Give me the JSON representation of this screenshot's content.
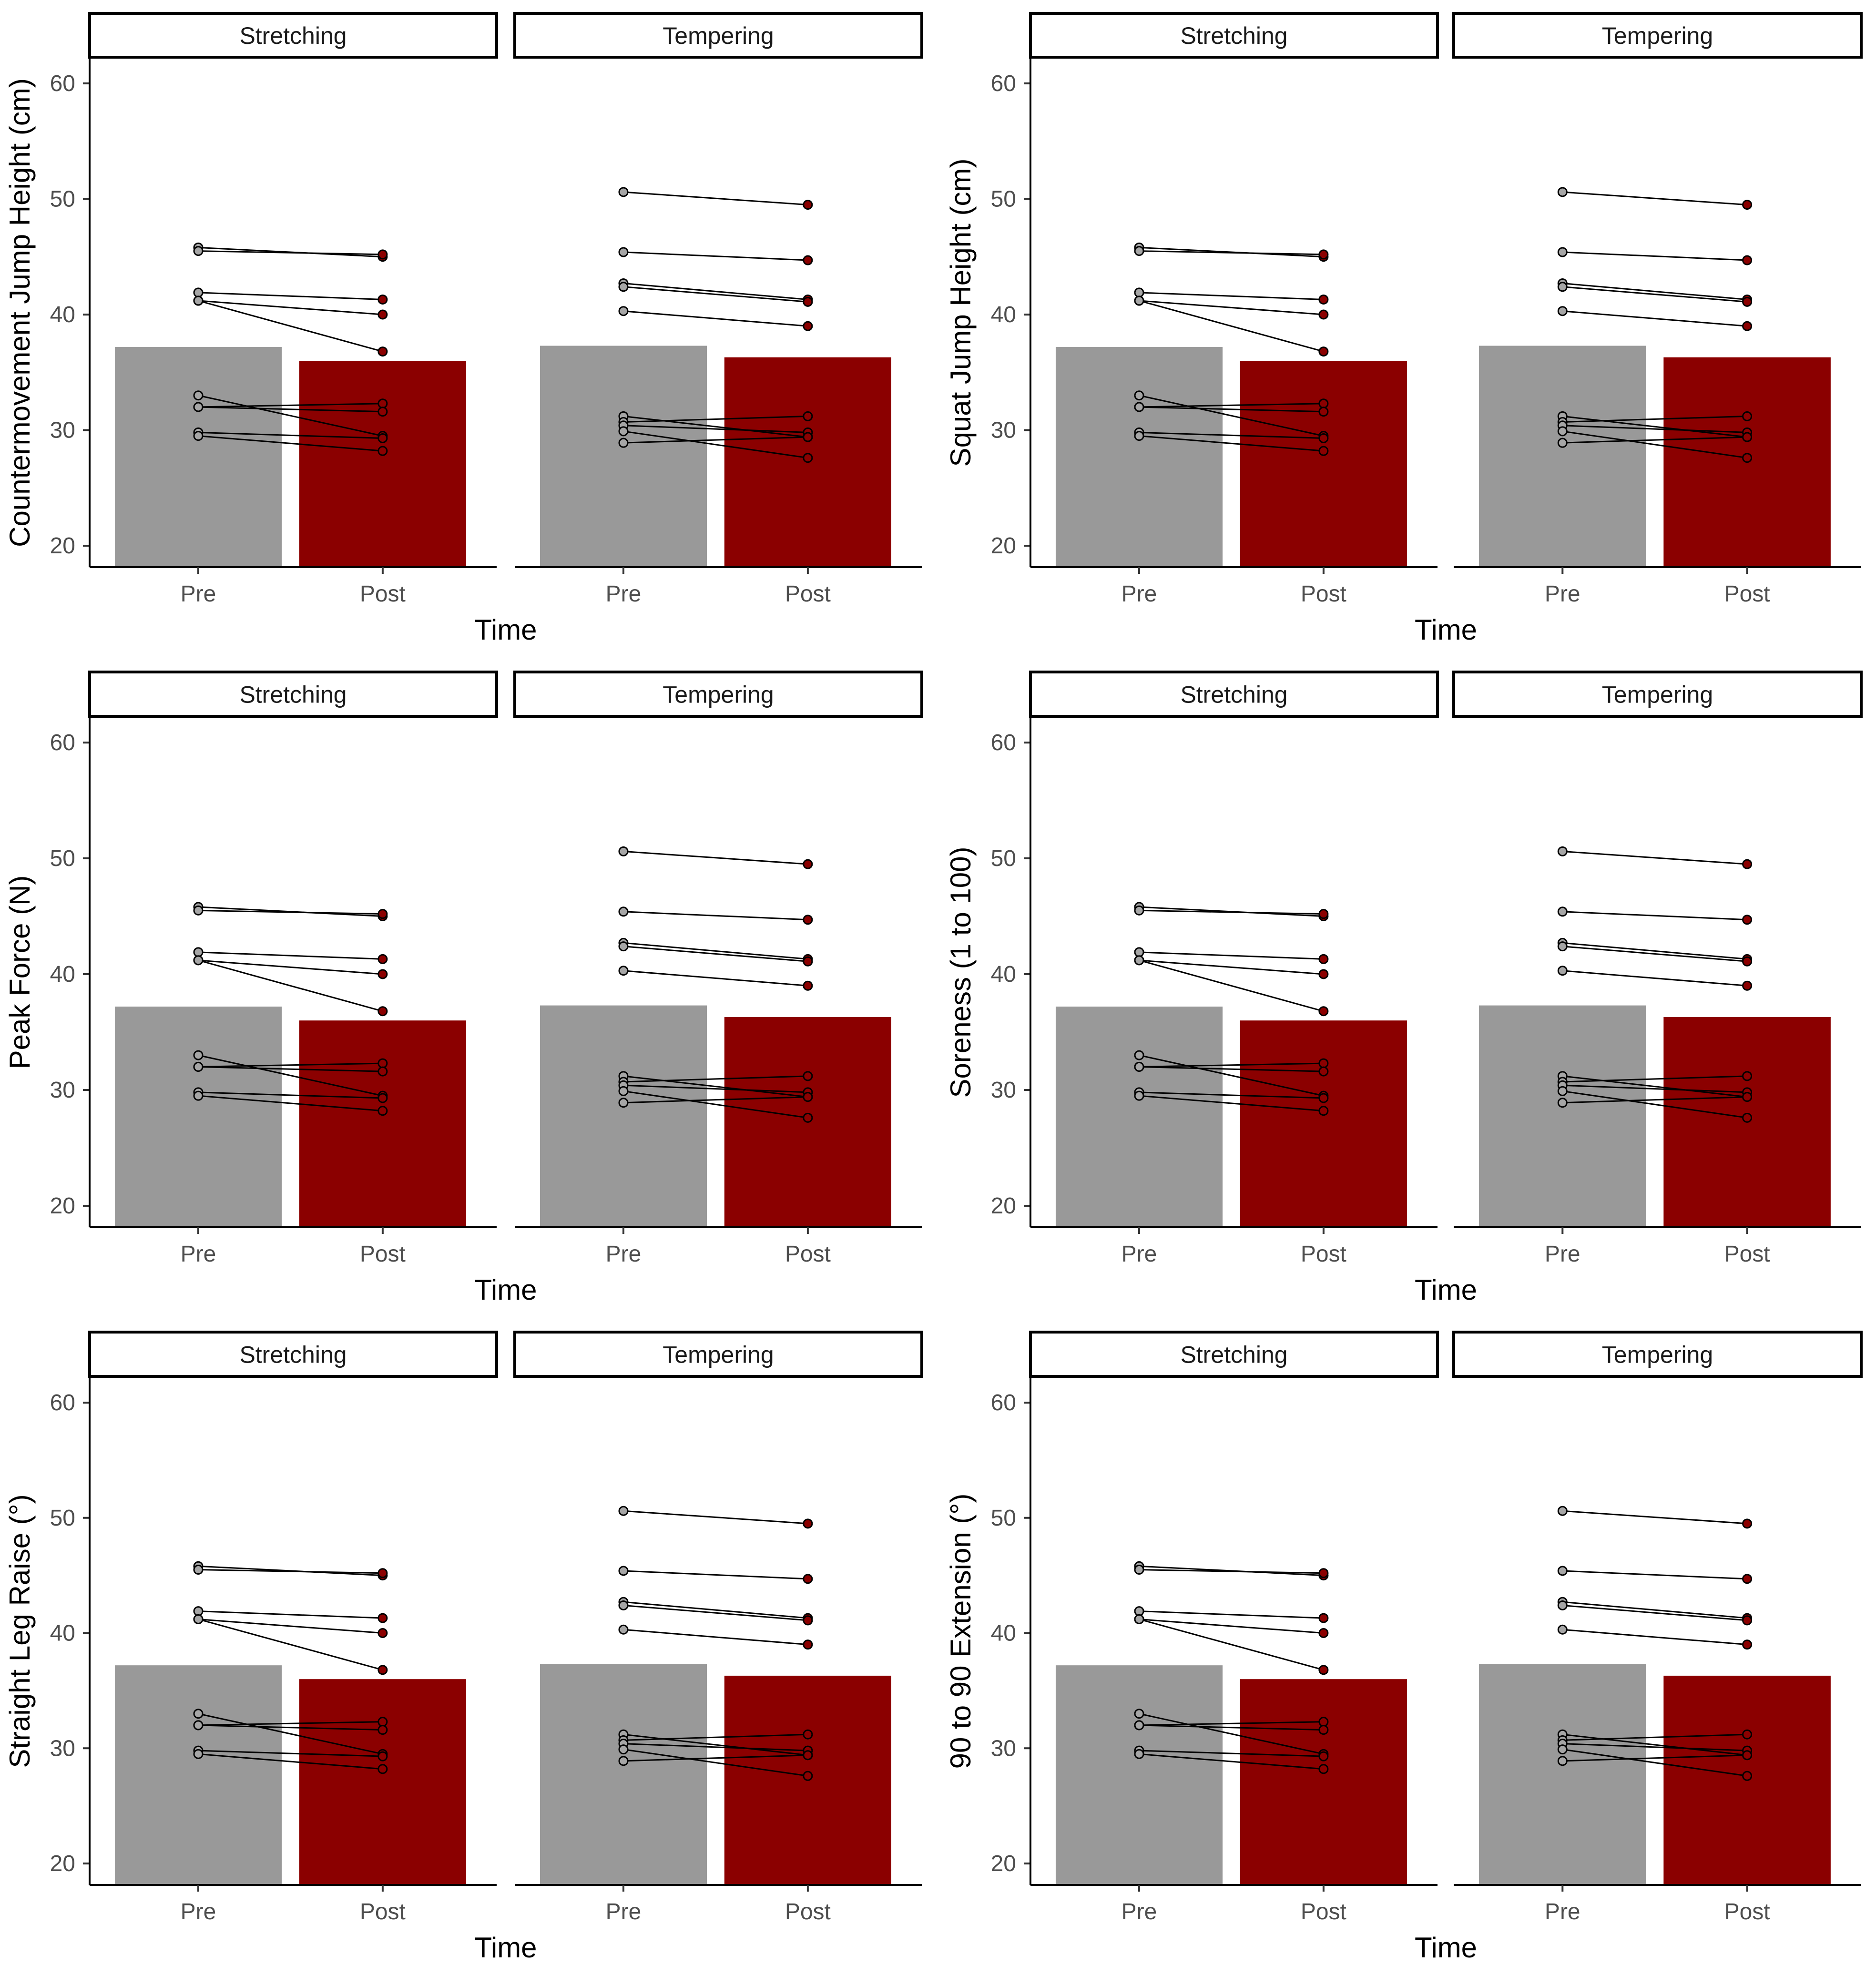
{
  "colors": {
    "pre_bar": "#999999",
    "post_bar": "#8b0000",
    "pre_point": "#a6a6a6",
    "post_point": "#8b0000",
    "line": "#000000",
    "axis": "#000000",
    "strip_fill": "#ffffff"
  },
  "chart_data": [
    {
      "type": "bar",
      "ylabel": "Countermovement Jump Height (cm)",
      "xlabel": "Time",
      "categories": [
        "Pre",
        "Post"
      ],
      "yticks": [
        20,
        30,
        40,
        50,
        60
      ],
      "ylim": [
        18,
        62
      ],
      "facets": [
        {
          "label": "Stretching",
          "bars": [
            37.2,
            36.0
          ],
          "lines": [
            [
              45.8,
              45.0
            ],
            [
              45.5,
              45.2
            ],
            [
              41.9,
              41.3
            ],
            [
              41.2,
              40.0
            ],
            [
              41.2,
              36.8
            ],
            [
              33.0,
              29.5
            ],
            [
              32.0,
              32.3
            ],
            [
              32.0,
              31.6
            ],
            [
              29.8,
              29.3
            ],
            [
              29.5,
              28.2
            ]
          ]
        },
        {
          "label": "Tempering",
          "bars": [
            37.3,
            36.3
          ],
          "lines": [
            [
              50.6,
              49.5
            ],
            [
              45.4,
              44.7
            ],
            [
              42.7,
              41.3
            ],
            [
              42.4,
              41.1
            ],
            [
              40.3,
              39.0
            ],
            [
              31.2,
              29.4
            ],
            [
              30.7,
              31.2
            ],
            [
              30.4,
              29.8
            ],
            [
              29.9,
              27.6
            ],
            [
              28.9,
              29.4
            ]
          ]
        }
      ]
    },
    {
      "type": "bar",
      "ylabel": "Squat Jump Height (cm)",
      "xlabel": "Time",
      "categories": [
        "Pre",
        "Post"
      ],
      "yticks": [
        20,
        30,
        40,
        50,
        60
      ],
      "ylim": [
        18,
        62
      ],
      "facets": [
        {
          "label": "Stretching",
          "bars": [
            37.2,
            36.0
          ],
          "lines": [
            [
              45.8,
              45.0
            ],
            [
              45.5,
              45.2
            ],
            [
              41.9,
              41.3
            ],
            [
              41.2,
              40.0
            ],
            [
              41.2,
              36.8
            ],
            [
              33.0,
              29.5
            ],
            [
              32.0,
              32.3
            ],
            [
              32.0,
              31.6
            ],
            [
              29.8,
              29.3
            ],
            [
              29.5,
              28.2
            ]
          ]
        },
        {
          "label": "Tempering",
          "bars": [
            37.3,
            36.3
          ],
          "lines": [
            [
              50.6,
              49.5
            ],
            [
              45.4,
              44.7
            ],
            [
              42.7,
              41.3
            ],
            [
              42.4,
              41.1
            ],
            [
              40.3,
              39.0
            ],
            [
              31.2,
              29.4
            ],
            [
              30.7,
              31.2
            ],
            [
              30.4,
              29.8
            ],
            [
              29.9,
              27.6
            ],
            [
              28.9,
              29.4
            ]
          ]
        }
      ]
    },
    {
      "type": "bar",
      "ylabel": "Peak Force (N)",
      "xlabel": "Time",
      "categories": [
        "Pre",
        "Post"
      ],
      "yticks": [
        20,
        30,
        40,
        50,
        60
      ],
      "ylim": [
        18,
        62
      ],
      "facets": [
        {
          "label": "Stretching",
          "bars": [
            37.2,
            36.0
          ],
          "lines": [
            [
              45.8,
              45.0
            ],
            [
              45.5,
              45.2
            ],
            [
              41.9,
              41.3
            ],
            [
              41.2,
              40.0
            ],
            [
              41.2,
              36.8
            ],
            [
              33.0,
              29.5
            ],
            [
              32.0,
              32.3
            ],
            [
              32.0,
              31.6
            ],
            [
              29.8,
              29.3
            ],
            [
              29.5,
              28.2
            ]
          ]
        },
        {
          "label": "Tempering",
          "bars": [
            37.3,
            36.3
          ],
          "lines": [
            [
              50.6,
              49.5
            ],
            [
              45.4,
              44.7
            ],
            [
              42.7,
              41.3
            ],
            [
              42.4,
              41.1
            ],
            [
              40.3,
              39.0
            ],
            [
              31.2,
              29.4
            ],
            [
              30.7,
              31.2
            ],
            [
              30.4,
              29.8
            ],
            [
              29.9,
              27.6
            ],
            [
              28.9,
              29.4
            ]
          ]
        }
      ]
    },
    {
      "type": "bar",
      "ylabel": "Soreness (1 to 100)",
      "xlabel": "Time",
      "categories": [
        "Pre",
        "Post"
      ],
      "yticks": [
        20,
        30,
        40,
        50,
        60
      ],
      "ylim": [
        18,
        62
      ],
      "facets": [
        {
          "label": "Stretching",
          "bars": [
            37.2,
            36.0
          ],
          "lines": [
            [
              45.8,
              45.0
            ],
            [
              45.5,
              45.2
            ],
            [
              41.9,
              41.3
            ],
            [
              41.2,
              40.0
            ],
            [
              41.2,
              36.8
            ],
            [
              33.0,
              29.5
            ],
            [
              32.0,
              32.3
            ],
            [
              32.0,
              31.6
            ],
            [
              29.8,
              29.3
            ],
            [
              29.5,
              28.2
            ]
          ]
        },
        {
          "label": "Tempering",
          "bars": [
            37.3,
            36.3
          ],
          "lines": [
            [
              50.6,
              49.5
            ],
            [
              45.4,
              44.7
            ],
            [
              42.7,
              41.3
            ],
            [
              42.4,
              41.1
            ],
            [
              40.3,
              39.0
            ],
            [
              31.2,
              29.4
            ],
            [
              30.7,
              31.2
            ],
            [
              30.4,
              29.8
            ],
            [
              29.9,
              27.6
            ],
            [
              28.9,
              29.4
            ]
          ]
        }
      ]
    },
    {
      "type": "bar",
      "ylabel": "Straight Leg Raise (°)",
      "xlabel": "Time",
      "categories": [
        "Pre",
        "Post"
      ],
      "yticks": [
        20,
        30,
        40,
        50,
        60
      ],
      "ylim": [
        18,
        62
      ],
      "facets": [
        {
          "label": "Stretching",
          "bars": [
            37.2,
            36.0
          ],
          "lines": [
            [
              45.8,
              45.0
            ],
            [
              45.5,
              45.2
            ],
            [
              41.9,
              41.3
            ],
            [
              41.2,
              40.0
            ],
            [
              41.2,
              36.8
            ],
            [
              33.0,
              29.5
            ],
            [
              32.0,
              32.3
            ],
            [
              32.0,
              31.6
            ],
            [
              29.8,
              29.3
            ],
            [
              29.5,
              28.2
            ]
          ]
        },
        {
          "label": "Tempering",
          "bars": [
            37.3,
            36.3
          ],
          "lines": [
            [
              50.6,
              49.5
            ],
            [
              45.4,
              44.7
            ],
            [
              42.7,
              41.3
            ],
            [
              42.4,
              41.1
            ],
            [
              40.3,
              39.0
            ],
            [
              31.2,
              29.4
            ],
            [
              30.7,
              31.2
            ],
            [
              30.4,
              29.8
            ],
            [
              29.9,
              27.6
            ],
            [
              28.9,
              29.4
            ]
          ]
        }
      ]
    },
    {
      "type": "bar",
      "ylabel": "90 to 90 Extension (°)",
      "xlabel": "Time",
      "categories": [
        "Pre",
        "Post"
      ],
      "yticks": [
        20,
        30,
        40,
        50,
        60
      ],
      "ylim": [
        18,
        62
      ],
      "facets": [
        {
          "label": "Stretching",
          "bars": [
            37.2,
            36.0
          ],
          "lines": [
            [
              45.8,
              45.0
            ],
            [
              45.5,
              45.2
            ],
            [
              41.9,
              41.3
            ],
            [
              41.2,
              40.0
            ],
            [
              41.2,
              36.8
            ],
            [
              33.0,
              29.5
            ],
            [
              32.0,
              32.3
            ],
            [
              32.0,
              31.6
            ],
            [
              29.8,
              29.3
            ],
            [
              29.5,
              28.2
            ]
          ]
        },
        {
          "label": "Tempering",
          "bars": [
            37.3,
            36.3
          ],
          "lines": [
            [
              50.6,
              49.5
            ],
            [
              45.4,
              44.7
            ],
            [
              42.7,
              41.3
            ],
            [
              42.4,
              41.1
            ],
            [
              40.3,
              39.0
            ],
            [
              31.2,
              29.4
            ],
            [
              30.7,
              31.2
            ],
            [
              30.4,
              29.8
            ],
            [
              29.9,
              27.6
            ],
            [
              28.9,
              29.4
            ]
          ]
        }
      ]
    }
  ]
}
